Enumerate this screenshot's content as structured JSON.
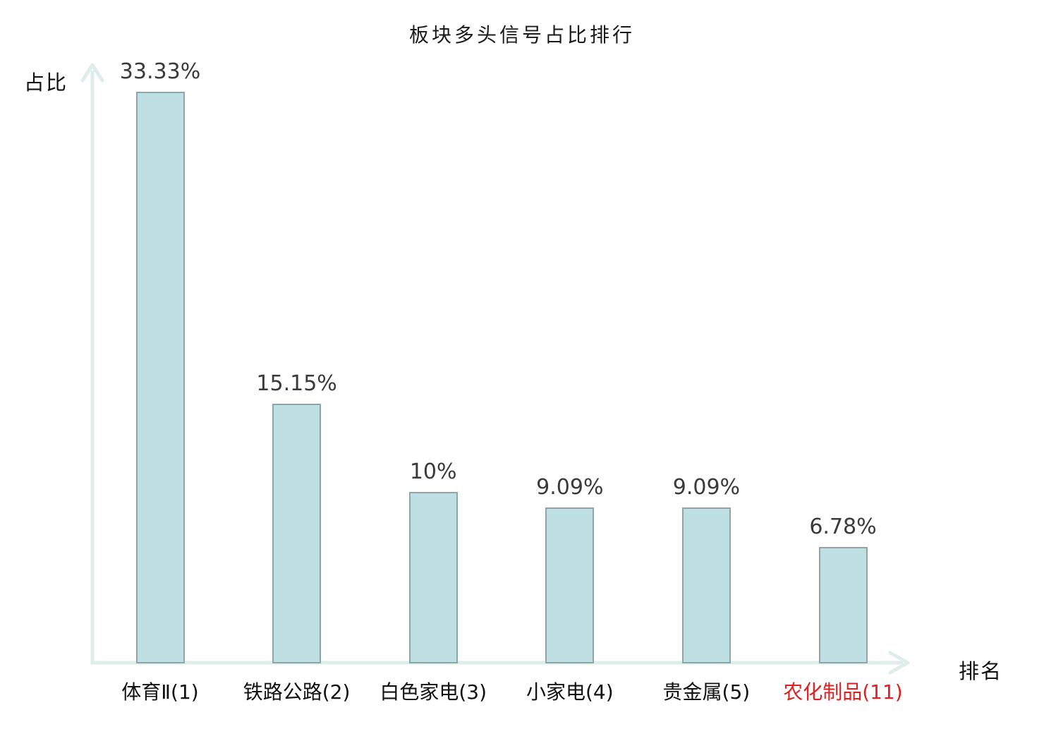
{
  "chart_data": {
    "type": "bar",
    "title": "板块多头信号占比排行",
    "ylabel": "占比",
    "xlabel": "排名",
    "categories": [
      "体育Ⅱ(1)",
      "铁路公路(2)",
      "白色家电(3)",
      "小家电(4)",
      "贵金属(5)",
      "农化制品(11)"
    ],
    "values": [
      33.33,
      15.15,
      10,
      9.09,
      9.09,
      6.78
    ],
    "value_labels": [
      "33.33%",
      "15.15%",
      "10%",
      "9.09%",
      "9.09%",
      "6.78%"
    ],
    "highlighted_category_index": 5,
    "ylim": [
      0,
      34.6
    ],
    "grid": false,
    "legend": null,
    "colors": {
      "background": "#ffffff",
      "bar_fill": "#bfe0e3",
      "bar_border": "#8ea6a9",
      "axis": "#ddeeea",
      "title": "#1a1a1a",
      "value_label": "#3a3a3a",
      "category_label": "#111111",
      "highlight_label": "#dd2020"
    }
  }
}
